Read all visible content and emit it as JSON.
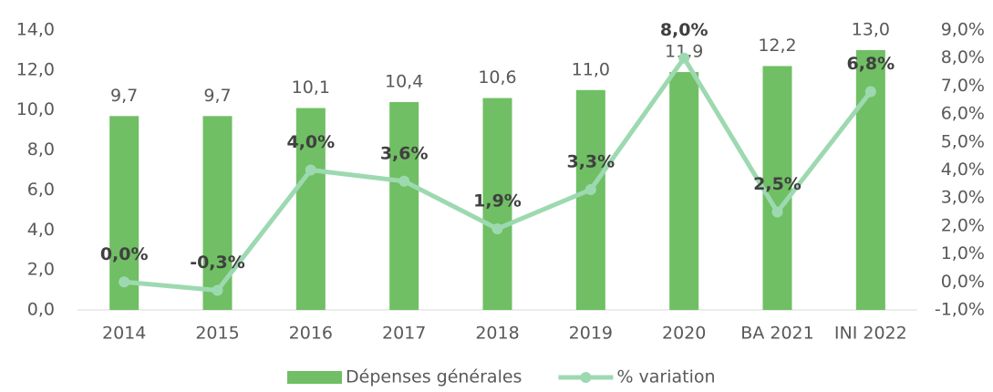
{
  "chart_data": {
    "type": "bar",
    "categories": [
      "2014",
      "2015",
      "2016",
      "2017",
      "2018",
      "2019",
      "2020",
      "BA 2021",
      "INI 2022"
    ],
    "series": [
      {
        "name": "Dépenses générales",
        "type": "bar",
        "color": "#70bf64",
        "values": [
          9.7,
          9.7,
          10.1,
          10.4,
          10.6,
          11.0,
          11.9,
          12.2,
          13.0
        ],
        "value_labels": [
          "9,7",
          "9,7",
          "10,1",
          "10,4",
          "10,6",
          "11,0",
          "11,9",
          "12,2",
          "13,0"
        ]
      },
      {
        "name": "% variation",
        "type": "line",
        "axis": "y2",
        "color": "#9dd9b0",
        "values": [
          0.0,
          -0.3,
          4.0,
          3.6,
          1.9,
          3.3,
          8.0,
          2.5,
          6.8
        ],
        "value_labels": [
          "0,0%",
          "-0,3%",
          "4,0%",
          "3,6%",
          "1,9%",
          "3,3%",
          "8,0%",
          "2,5%",
          "6,8%"
        ]
      }
    ],
    "ylim": [
      0,
      14
    ],
    "yticks": [
      {
        "value": 0,
        "label": "0,0"
      },
      {
        "value": 2,
        "label": "2,0"
      },
      {
        "value": 4,
        "label": "4,0"
      },
      {
        "value": 6,
        "label": "6,0"
      },
      {
        "value": 8,
        "label": "8,0"
      },
      {
        "value": 10,
        "label": "10,0"
      },
      {
        "value": 12,
        "label": "12,0"
      },
      {
        "value": 14,
        "label": "14,0"
      }
    ],
    "y2lim": [
      -1,
      9
    ],
    "y2ticks": [
      {
        "value": -1,
        "label": "-1,0%"
      },
      {
        "value": 0,
        "label": "0,0%"
      },
      {
        "value": 1,
        "label": "1,0%"
      },
      {
        "value": 2,
        "label": "2,0%"
      },
      {
        "value": 3,
        "label": "3,0%"
      },
      {
        "value": 4,
        "label": "4,0%"
      },
      {
        "value": 5,
        "label": "5,0%"
      },
      {
        "value": 6,
        "label": "6,0%"
      },
      {
        "value": 7,
        "label": "7,0%"
      },
      {
        "value": 8,
        "label": "8,0%"
      },
      {
        "value": 9,
        "label": "9,0%"
      }
    ],
    "legend": "bottom"
  }
}
